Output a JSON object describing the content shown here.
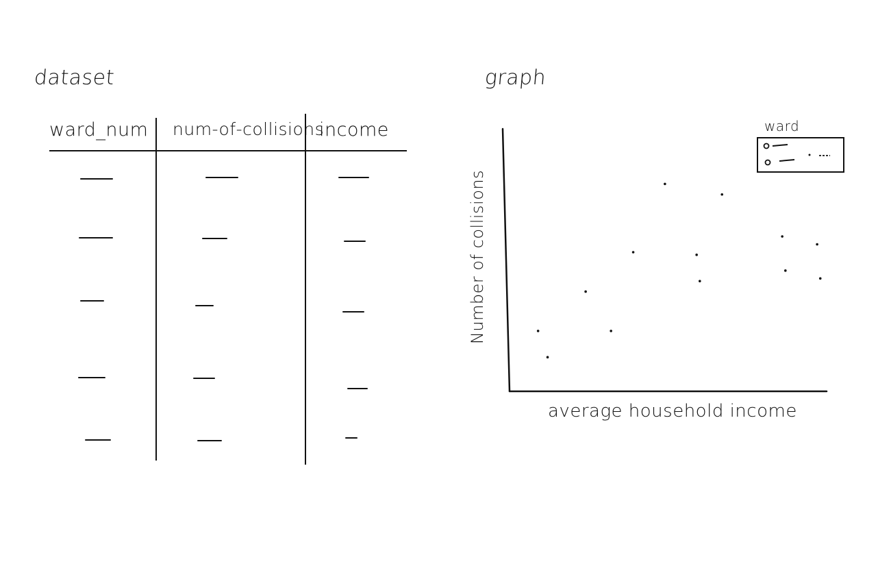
{
  "canvas": {
    "background": "#ffffff",
    "ink": "#111111"
  },
  "dataset": {
    "title": "dataset",
    "columns": [
      "ward_num",
      "num-of-collisions",
      "income"
    ],
    "rows": [
      [
        "—",
        "—",
        "—"
      ],
      [
        "—",
        "—",
        "—"
      ],
      [
        "—",
        "—",
        "—"
      ],
      [
        "—",
        "—",
        "—"
      ],
      [
        "—",
        "—",
        "—"
      ]
    ]
  },
  "graph": {
    "title": "graph",
    "legend_title": "ward"
  },
  "chart_data": {
    "type": "scatter",
    "xlabel": "average household income",
    "ylabel": "Number of collisions",
    "legend": {
      "title": "ward",
      "placement": "top-right"
    },
    "grid": false,
    "points": [
      {
        "x": 0.09,
        "y": 0.23
      },
      {
        "x": 0.12,
        "y": 0.13
      },
      {
        "x": 0.24,
        "y": 0.38
      },
      {
        "x": 0.32,
        "y": 0.23
      },
      {
        "x": 0.39,
        "y": 0.53
      },
      {
        "x": 0.49,
        "y": 0.79
      },
      {
        "x": 0.59,
        "y": 0.52
      },
      {
        "x": 0.6,
        "y": 0.42
      },
      {
        "x": 0.67,
        "y": 0.75
      },
      {
        "x": 0.86,
        "y": 0.59
      },
      {
        "x": 0.87,
        "y": 0.46
      },
      {
        "x": 0.97,
        "y": 0.56
      },
      {
        "x": 0.98,
        "y": 0.43
      }
    ]
  }
}
